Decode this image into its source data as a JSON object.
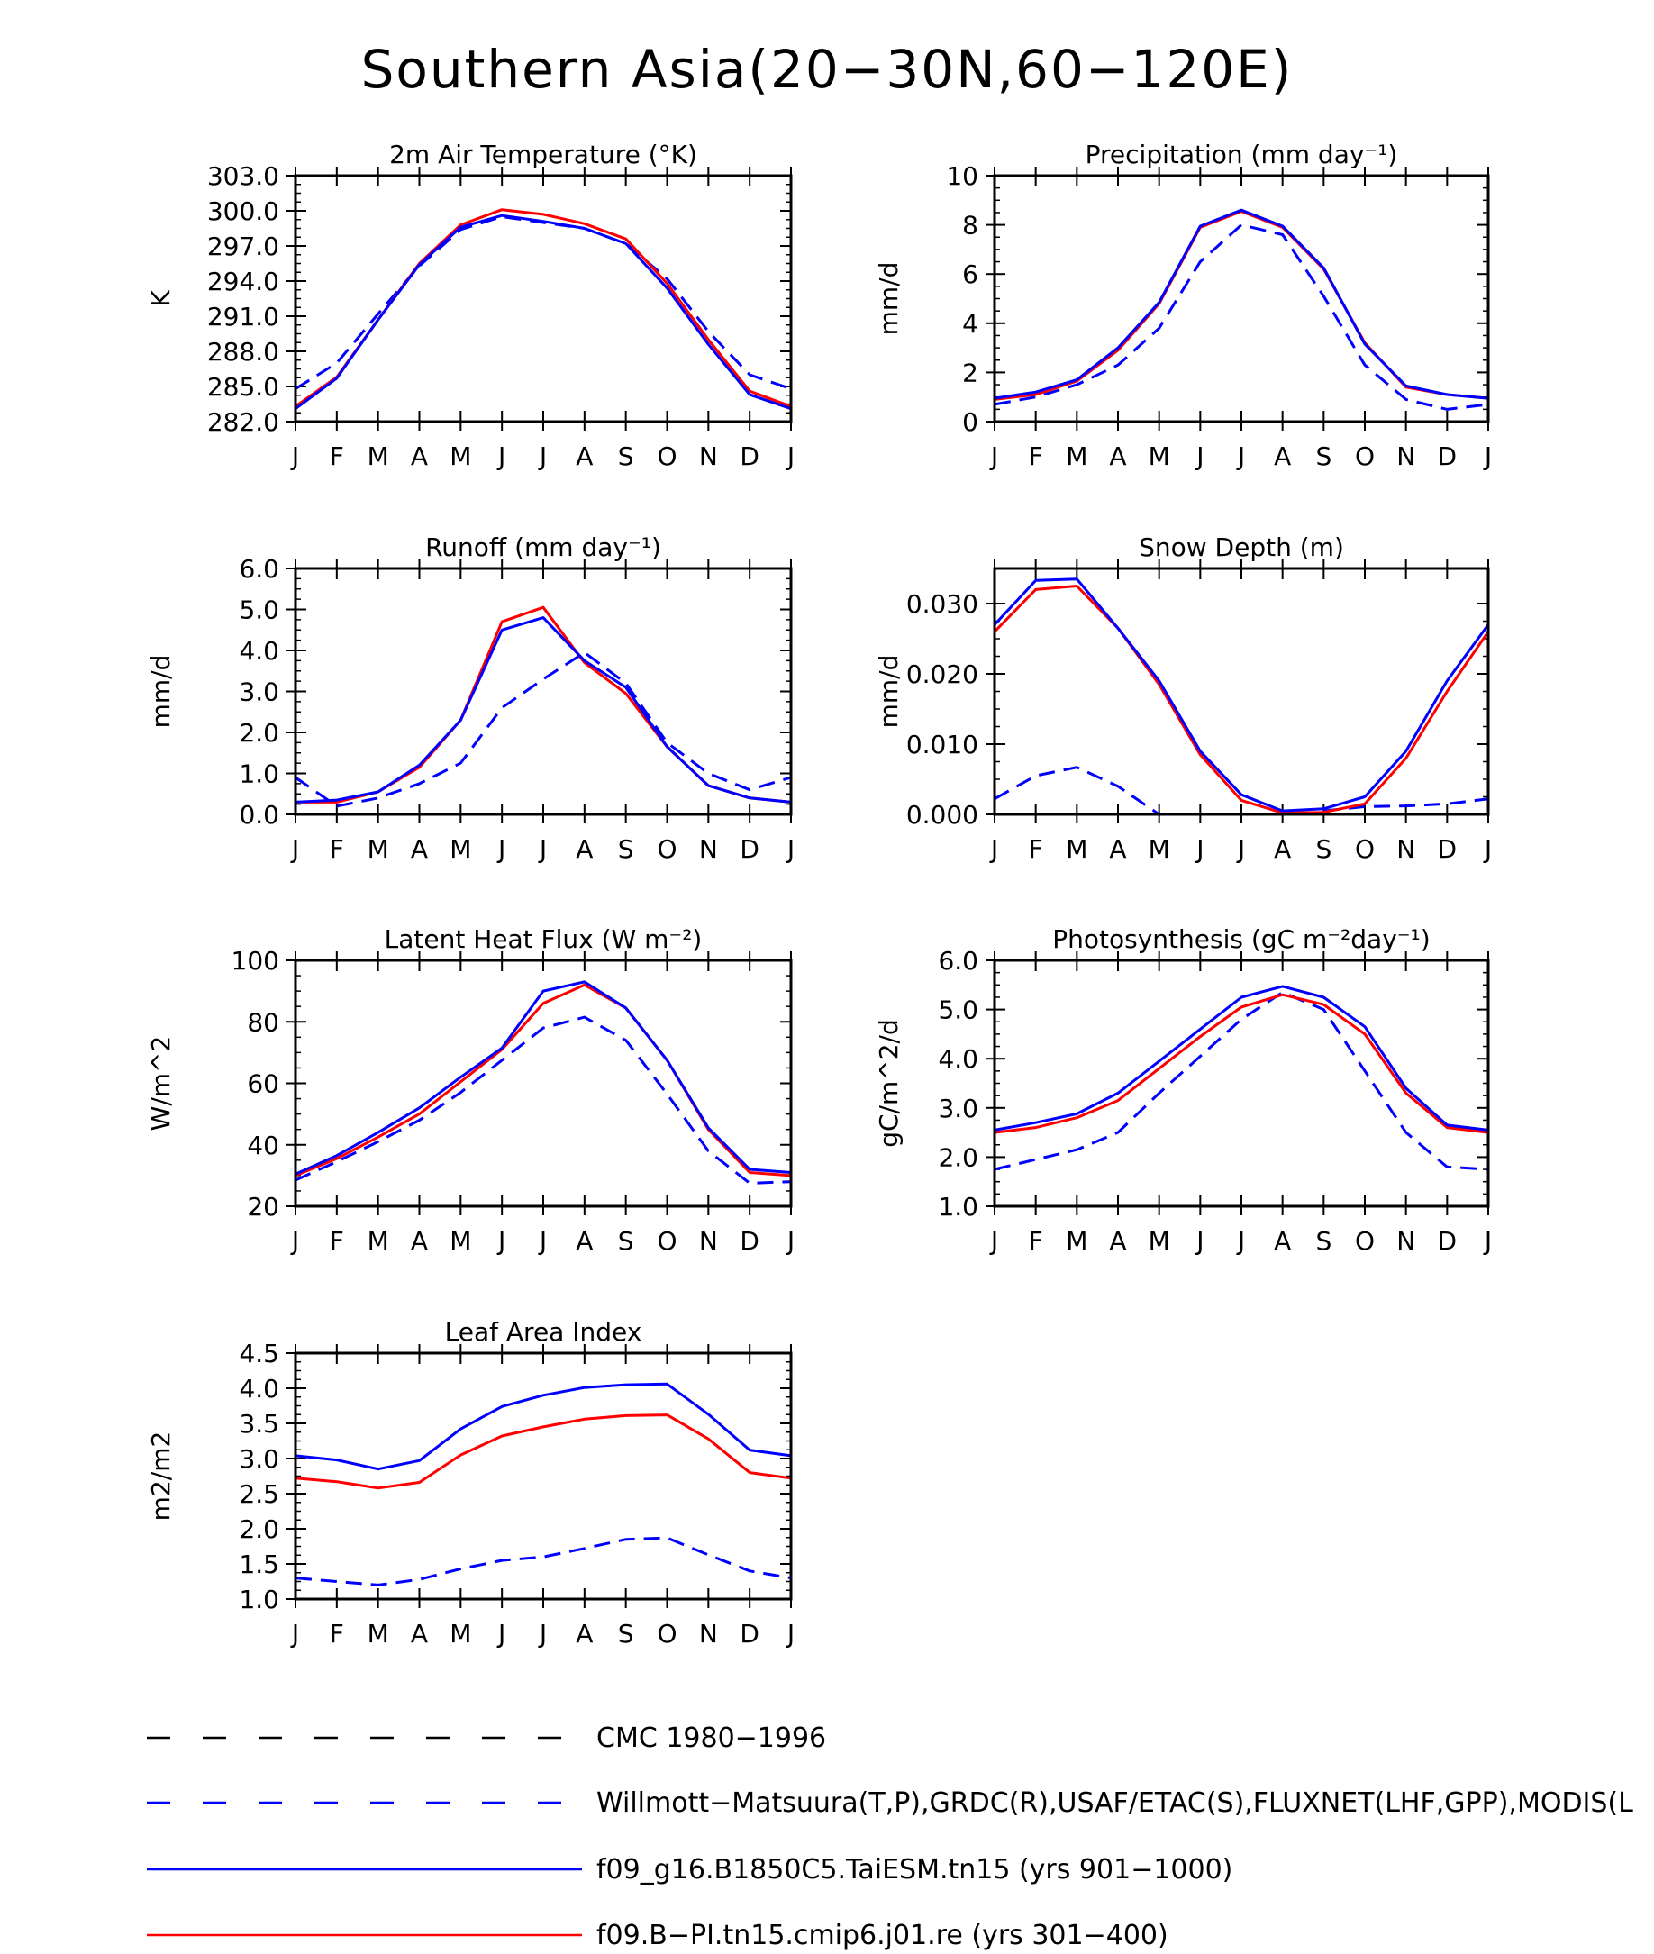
{
  "title": "Southern Asia(20−30N,60−120E)",
  "x_tick_labels": [
    "J",
    "F",
    "M",
    "A",
    "M",
    "J",
    "J",
    "A",
    "S",
    "O",
    "N",
    "D",
    "J"
  ],
  "series_styles": {
    "cmc": {
      "color": "#000000",
      "dash": true
    },
    "obs": {
      "color": "#0000ff",
      "dash": true
    },
    "taiesm": {
      "color": "#0000ff",
      "dash": false
    },
    "cmip6": {
      "color": "#ff0000",
      "dash": false
    }
  },
  "legend": [
    {
      "key": "cmc",
      "label": "CMC 1980−1996"
    },
    {
      "key": "obs",
      "label": "Willmott−Matsuura(T,P),GRDC(R),USAF/ETAC(S),FLUXNET(LHF,GPP),MODIS(L"
    },
    {
      "key": "taiesm",
      "label": "f09_g16.B1850C5.TaiESM.tn15 (yrs 901−1000)"
    },
    {
      "key": "cmip6",
      "label": "f09.B−PI.tn15.cmip6.j01.re (yrs 301−400)"
    }
  ],
  "chart_data": [
    {
      "type": "line",
      "title": "2m Air Temperature (°K)",
      "ylabel": "K",
      "ylim": [
        282,
        303
      ],
      "yticks": [
        "282.0",
        "285.0",
        "288.0",
        "291.0",
        "294.0",
        "297.0",
        "300.0",
        "303.0"
      ],
      "categories": [
        "J",
        "F",
        "M",
        "A",
        "M",
        "J",
        "J",
        "A",
        "S",
        "O",
        "N",
        "D",
        "J"
      ],
      "series": [
        {
          "key": "obs",
          "values": [
            284.8,
            287.0,
            291.2,
            295.3,
            298.4,
            299.5,
            299.0,
            298.5,
            297.2,
            294.2,
            289.7,
            286.0,
            284.8
          ]
        },
        {
          "key": "cmip6",
          "values": [
            283.3,
            285.8,
            290.7,
            295.5,
            298.8,
            300.1,
            299.7,
            298.9,
            297.6,
            293.8,
            289.0,
            284.6,
            283.3
          ]
        },
        {
          "key": "taiesm",
          "values": [
            283.1,
            285.7,
            290.7,
            295.4,
            298.6,
            299.6,
            299.1,
            298.5,
            297.2,
            293.4,
            288.6,
            284.3,
            283.1
          ]
        }
      ]
    },
    {
      "type": "line",
      "title": "Precipitation (mm day⁻¹)",
      "ylabel": "mm/d",
      "ylim": [
        0,
        10
      ],
      "yticks": [
        "0",
        "2",
        "4",
        "6",
        "8",
        "10"
      ],
      "categories": [
        "J",
        "F",
        "M",
        "A",
        "M",
        "J",
        "J",
        "A",
        "S",
        "O",
        "N",
        "D",
        "J"
      ],
      "series": [
        {
          "key": "obs",
          "values": [
            0.7,
            1.0,
            1.5,
            2.3,
            3.8,
            6.5,
            8.0,
            7.6,
            5.1,
            2.3,
            0.9,
            0.5,
            0.7
          ]
        },
        {
          "key": "cmip6",
          "values": [
            0.9,
            1.1,
            1.65,
            2.9,
            4.8,
            7.9,
            8.55,
            7.9,
            6.2,
            3.2,
            1.4,
            1.1,
            0.95
          ]
        },
        {
          "key": "taiesm",
          "values": [
            0.95,
            1.2,
            1.7,
            3.0,
            4.85,
            7.95,
            8.6,
            7.95,
            6.25,
            3.15,
            1.45,
            1.1,
            0.95
          ]
        }
      ]
    },
    {
      "type": "line",
      "title": "Runoff (mm day⁻¹)",
      "ylabel": "mm/d",
      "ylim": [
        0,
        6
      ],
      "yticks": [
        "0.0",
        "1.0",
        "2.0",
        "3.0",
        "4.0",
        "5.0",
        "6.0"
      ],
      "categories": [
        "J",
        "F",
        "M",
        "A",
        "M",
        "J",
        "J",
        "A",
        "S",
        "O",
        "N",
        "D",
        "J"
      ],
      "series": [
        {
          "key": "obs",
          "values": [
            0.9,
            0.2,
            0.4,
            0.75,
            1.25,
            2.6,
            3.3,
            3.95,
            3.2,
            1.75,
            1.0,
            0.6,
            0.9
          ]
        },
        {
          "key": "cmip6",
          "values": [
            0.3,
            0.3,
            0.55,
            1.15,
            2.3,
            4.7,
            5.05,
            3.7,
            2.95,
            1.65,
            0.7,
            0.4,
            0.3
          ]
        },
        {
          "key": "taiesm",
          "values": [
            0.3,
            0.35,
            0.55,
            1.2,
            2.3,
            4.5,
            4.8,
            3.75,
            3.1,
            1.65,
            0.7,
            0.4,
            0.3
          ]
        }
      ]
    },
    {
      "type": "line",
      "title": "Snow Depth (m)",
      "ylabel": "mm/d",
      "ylim": [
        0,
        0.035
      ],
      "yticks": [
        "0.000",
        "0.010",
        "0.020",
        "0.030"
      ],
      "ytick_values": [
        0,
        0.01,
        0.02,
        0.03
      ],
      "categories": [
        "J",
        "F",
        "M",
        "A",
        "M",
        "J",
        "J",
        "A",
        "S",
        "O",
        "N",
        "D",
        "J"
      ],
      "series": [
        {
          "key": "cmc",
          "values": [
            0,
            0,
            0,
            0,
            0,
            0,
            0,
            0,
            0,
            0,
            0,
            0,
            0
          ]
        },
        {
          "key": "obs",
          "values": [
            0.0022,
            0.0055,
            0.0067,
            0.004,
            0.0,
            null,
            null,
            null,
            0.0005,
            0.0011,
            0.0012,
            0.0015,
            0.0022
          ]
        },
        {
          "key": "cmip6",
          "values": [
            0.026,
            0.032,
            0.0325,
            0.0265,
            0.0185,
            0.0085,
            0.002,
            0.0002,
            0.0003,
            0.0015,
            0.008,
            0.0175,
            0.026
          ]
        },
        {
          "key": "taiesm",
          "values": [
            0.027,
            0.0333,
            0.0335,
            0.0265,
            0.019,
            0.009,
            0.0028,
            0.0005,
            0.0008,
            0.0025,
            0.009,
            0.019,
            0.027
          ]
        }
      ]
    },
    {
      "type": "line",
      "title": "Latent Heat Flux (W m⁻²)",
      "ylabel": "W/m^2",
      "ylim": [
        20,
        100
      ],
      "yticks": [
        "20",
        "40",
        "60",
        "80",
        "100"
      ],
      "categories": [
        "J",
        "F",
        "M",
        "A",
        "M",
        "J",
        "J",
        "A",
        "S",
        "O",
        "N",
        "D",
        "J"
      ],
      "series": [
        {
          "key": "obs",
          "values": [
            28.5,
            34.5,
            41,
            48,
            57,
            67.5,
            78,
            81.5,
            74,
            56.5,
            38,
            27.5,
            28
          ]
        },
        {
          "key": "cmip6",
          "values": [
            30,
            35.5,
            42.5,
            50,
            60.5,
            71,
            86,
            92,
            84.5,
            67.5,
            45,
            31,
            30
          ]
        },
        {
          "key": "taiesm",
          "values": [
            30.5,
            36.5,
            44,
            52,
            62,
            71.5,
            90,
            93,
            84.5,
            67.5,
            45.5,
            32,
            31
          ]
        }
      ]
    },
    {
      "type": "line",
      "title": "Photosynthesis (gC m⁻²day⁻¹)",
      "ylabel": "gC/m^2/d",
      "ylim": [
        1,
        6
      ],
      "yticks": [
        "1.0",
        "2.0",
        "3.0",
        "4.0",
        "5.0",
        "6.0"
      ],
      "categories": [
        "J",
        "F",
        "M",
        "A",
        "M",
        "J",
        "J",
        "A",
        "S",
        "O",
        "N",
        "D",
        "J"
      ],
      "series": [
        {
          "key": "obs",
          "values": [
            1.75,
            1.95,
            2.15,
            2.5,
            3.3,
            4.05,
            4.8,
            5.35,
            5.0,
            3.75,
            2.5,
            1.8,
            1.75
          ]
        },
        {
          "key": "cmip6",
          "values": [
            2.5,
            2.6,
            2.8,
            3.15,
            3.8,
            4.45,
            5.05,
            5.3,
            5.1,
            4.5,
            3.3,
            2.6,
            2.5
          ]
        },
        {
          "key": "taiesm",
          "values": [
            2.55,
            2.7,
            2.88,
            3.3,
            3.95,
            4.6,
            5.25,
            5.47,
            5.25,
            4.65,
            3.4,
            2.65,
            2.55
          ]
        }
      ]
    },
    {
      "type": "line",
      "title": "Leaf Area Index",
      "ylabel": "m2/m2",
      "ylim": [
        1,
        4.5
      ],
      "yticks": [
        "1.0",
        "1.5",
        "2.0",
        "2.5",
        "3.0",
        "3.5",
        "4.0",
        "4.5"
      ],
      "categories": [
        "J",
        "F",
        "M",
        "A",
        "M",
        "J",
        "J",
        "A",
        "S",
        "O",
        "N",
        "D",
        "J"
      ],
      "series": [
        {
          "key": "obs",
          "values": [
            1.3,
            1.25,
            1.2,
            1.28,
            1.43,
            1.55,
            1.6,
            1.72,
            1.85,
            1.87,
            1.63,
            1.4,
            1.3
          ]
        },
        {
          "key": "cmip6",
          "values": [
            2.72,
            2.67,
            2.58,
            2.66,
            3.05,
            3.32,
            3.45,
            3.56,
            3.61,
            3.62,
            3.28,
            2.8,
            2.72
          ]
        },
        {
          "key": "taiesm",
          "values": [
            3.04,
            2.98,
            2.85,
            2.97,
            3.42,
            3.74,
            3.9,
            4.01,
            4.05,
            4.06,
            3.63,
            3.12,
            3.04
          ]
        }
      ]
    }
  ]
}
